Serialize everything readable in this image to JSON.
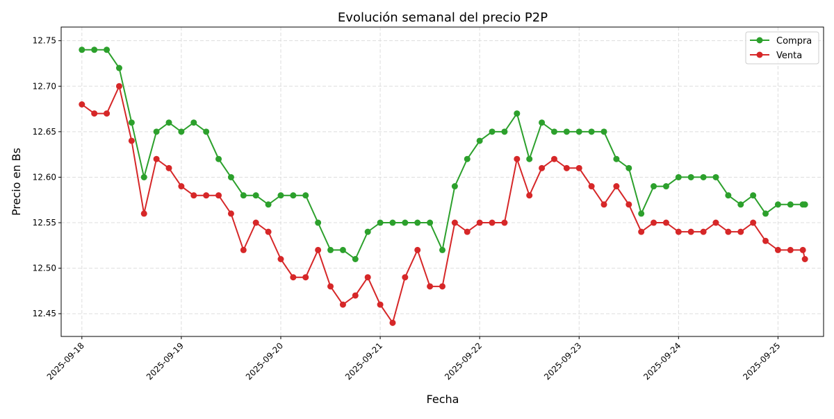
{
  "chart_data": {
    "type": "line",
    "title": "Evolución semanal del precio P2P",
    "xlabel": "Fecha",
    "ylabel": "Precio en Bs",
    "xlim": [
      "2025-09-17 19:00",
      "2025-09-25 11:00"
    ],
    "ylim": [
      12.425,
      12.765
    ],
    "grid": true,
    "legend_position": "top-right",
    "x_tick_labels": [
      "2025-09-18",
      "2025-09-19",
      "2025-09-20",
      "2025-09-21",
      "2025-09-22",
      "2025-09-23",
      "2025-09-24",
      "2025-09-25"
    ],
    "y_ticks": [
      12.45,
      12.5,
      12.55,
      12.6,
      12.65,
      12.7,
      12.75
    ],
    "y_tick_labels": [
      "12.45",
      "12.50",
      "12.55",
      "12.60",
      "12.65",
      "12.70",
      "12.75"
    ],
    "x": [
      "2025-09-18 00:00",
      "2025-09-18 03:00",
      "2025-09-18 06:00",
      "2025-09-18 09:00",
      "2025-09-18 12:00",
      "2025-09-18 15:00",
      "2025-09-18 18:00",
      "2025-09-18 21:00",
      "2025-09-19 00:00",
      "2025-09-19 03:00",
      "2025-09-19 06:00",
      "2025-09-19 09:00",
      "2025-09-19 12:00",
      "2025-09-19 15:00",
      "2025-09-19 18:00",
      "2025-09-19 21:00",
      "2025-09-20 00:00",
      "2025-09-20 03:00",
      "2025-09-20 06:00",
      "2025-09-20 09:00",
      "2025-09-20 12:00",
      "2025-09-20 15:00",
      "2025-09-20 18:00",
      "2025-09-20 21:00",
      "2025-09-21 00:00",
      "2025-09-21 03:00",
      "2025-09-21 06:00",
      "2025-09-21 09:00",
      "2025-09-21 12:00",
      "2025-09-21 15:00",
      "2025-09-21 18:00",
      "2025-09-21 21:00",
      "2025-09-22 00:00",
      "2025-09-22 03:00",
      "2025-09-22 06:00",
      "2025-09-22 09:00",
      "2025-09-22 12:00",
      "2025-09-22 15:00",
      "2025-09-22 18:00",
      "2025-09-22 21:00",
      "2025-09-23 00:00",
      "2025-09-23 03:00",
      "2025-09-23 06:00",
      "2025-09-23 09:00",
      "2025-09-23 12:00",
      "2025-09-23 15:00",
      "2025-09-23 18:00",
      "2025-09-23 21:00",
      "2025-09-24 00:00",
      "2025-09-24 03:00",
      "2025-09-24 06:00",
      "2025-09-24 09:00",
      "2025-09-24 12:00",
      "2025-09-24 15:00",
      "2025-09-24 18:00",
      "2025-09-24 21:00",
      "2025-09-25 00:00",
      "2025-09-25 03:00",
      "2025-09-25 06:00",
      "2025-09-25 06:30"
    ],
    "series": [
      {
        "name": "Compra",
        "color": "#2ca02c",
        "marker": "circle",
        "values": [
          12.74,
          12.74,
          12.74,
          12.72,
          12.66,
          12.6,
          12.65,
          12.66,
          12.65,
          12.66,
          12.65,
          12.62,
          12.6,
          12.58,
          12.58,
          12.57,
          12.58,
          12.58,
          12.58,
          12.55,
          12.52,
          12.52,
          12.51,
          12.54,
          12.55,
          12.55,
          12.55,
          12.55,
          12.55,
          12.52,
          12.59,
          12.62,
          12.64,
          12.65,
          12.65,
          12.67,
          12.62,
          12.66,
          12.65,
          12.65,
          12.65,
          12.65,
          12.65,
          12.62,
          12.61,
          12.56,
          12.59,
          12.59,
          12.6,
          12.6,
          12.6,
          12.6,
          12.58,
          12.57,
          12.58,
          12.56,
          12.57,
          12.57,
          12.57,
          12.57
        ]
      },
      {
        "name": "Venta",
        "color": "#d62728",
        "marker": "circle",
        "values": [
          12.68,
          12.67,
          12.67,
          12.7,
          12.64,
          12.56,
          12.62,
          12.61,
          12.59,
          12.58,
          12.58,
          12.58,
          12.56,
          12.52,
          12.55,
          12.54,
          12.51,
          12.49,
          12.49,
          12.52,
          12.48,
          12.46,
          12.47,
          12.49,
          12.46,
          12.44,
          12.49,
          12.52,
          12.48,
          12.48,
          12.55,
          12.54,
          12.55,
          12.55,
          12.55,
          12.62,
          12.58,
          12.61,
          12.62,
          12.61,
          12.61,
          12.59,
          12.57,
          12.59,
          12.57,
          12.54,
          12.55,
          12.55,
          12.54,
          12.54,
          12.54,
          12.55,
          12.54,
          12.54,
          12.55,
          12.53,
          12.52,
          12.52,
          12.52,
          12.51
        ]
      }
    ]
  }
}
